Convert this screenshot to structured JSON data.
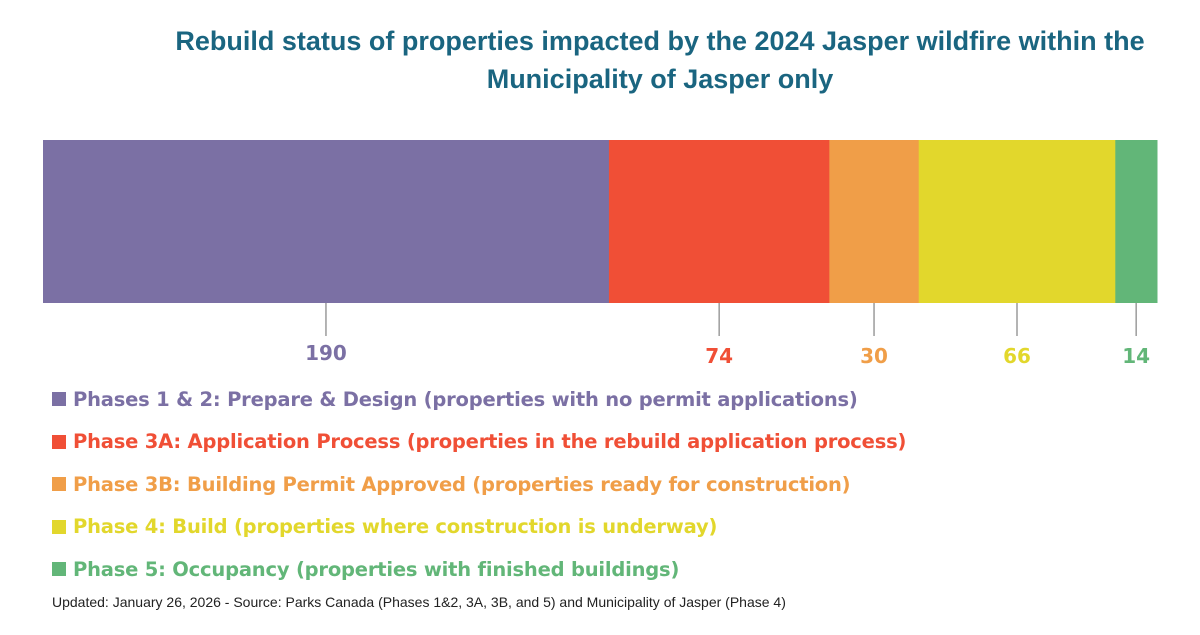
{
  "chart_data": {
    "type": "bar",
    "orientation": "horizontal-stacked",
    "title_line1": "Rebuild status of properties impacted by the 2024 Jasper wildfire within the",
    "title_line2": "Municipality of Jasper only",
    "series": [
      {
        "name": "Phases 1 & 2: Prepare & Design (properties with no permit applications)",
        "value": 190,
        "color": "#7b70a4"
      },
      {
        "name": "Phase 3A: Application Process (properties in the rebuild application process)",
        "value": 74,
        "color": "#f04f36"
      },
      {
        "name": "Phase 3B: Building Permit Approved (properties ready for construction)",
        "value": 30,
        "color": "#f09e48"
      },
      {
        "name": "Phase 4: Build (properties where construction is underway)",
        "value": 66,
        "color": "#e2d72c"
      },
      {
        "name": "Phase 5: Occupancy (properties with finished buildings)",
        "value": 14,
        "color": "#62b678"
      }
    ],
    "legend_placement": "bottom-left",
    "grid": false
  },
  "footnote": "Updated: January 26, 2026  -  Source: Parks Canada (Phases 1&2, 3A, 3B, and 5) and Municipality of Jasper (Phase 4)"
}
